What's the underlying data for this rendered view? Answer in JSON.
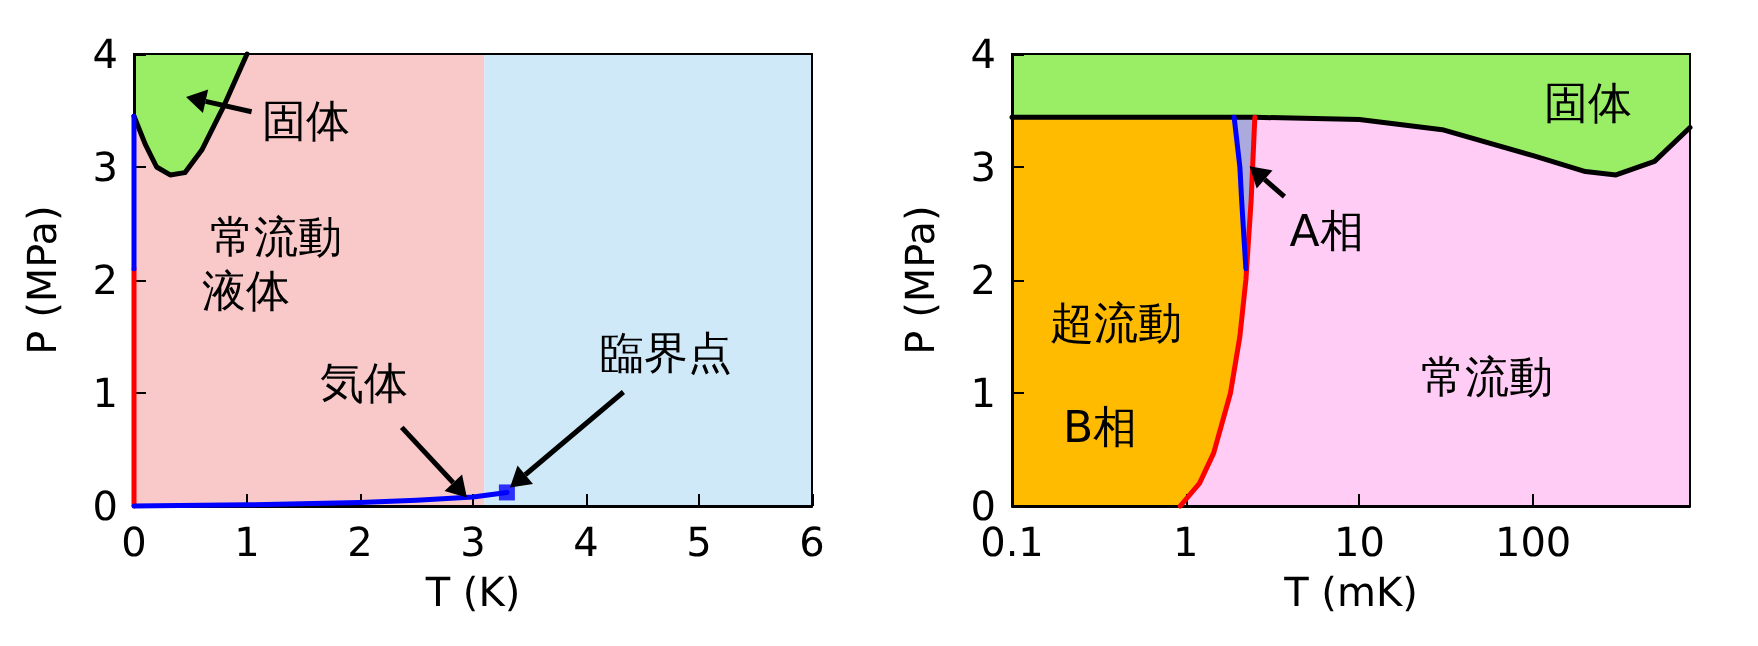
{
  "chart_data": [
    {
      "type": "line",
      "xlabel": "T (K)",
      "ylabel": "P (MPa)",
      "xlim": [
        0,
        6
      ],
      "ylim": [
        0,
        4
      ],
      "xticks": [
        0,
        1,
        2,
        3,
        4,
        5,
        6
      ],
      "yticks": [
        0,
        1,
        2,
        3,
        4
      ],
      "grid": false,
      "marker": "none",
      "bands": [
        {
          "axis": "x",
          "from": 0,
          "to": 3.1,
          "color": "#f9c9c9"
        },
        {
          "axis": "x",
          "from": 3.1,
          "to": 6,
          "color": "#cfe9f8"
        }
      ],
      "series": [
        {
          "color": "#000000",
          "x": [
            0,
            0.1,
            0.2,
            0.32,
            0.45,
            0.6,
            0.8,
            1.0
          ],
          "values": [
            3.45,
            3.2,
            3.0,
            2.93,
            2.95,
            3.15,
            3.55,
            4.0
          ]
        },
        {
          "color": "#ff0000",
          "x": [
            0,
            0
          ],
          "values": [
            0,
            2.1
          ]
        },
        {
          "color": "#0000ff",
          "x": [
            0,
            0
          ],
          "values": [
            2.1,
            3.45
          ]
        },
        {
          "color": "#0000ff",
          "x": [
            0,
            1,
            2,
            2.5,
            3,
            3.3
          ],
          "values": [
            0,
            0.01,
            0.03,
            0.05,
            0.08,
            0.12
          ]
        },
        {
          "type": "scatter",
          "marker": "square",
          "color": "#0000ff",
          "x": [
            3.3
          ],
          "values": [
            0.12
          ]
        }
      ],
      "annotations": [
        "固体",
        "常流動",
        "液体",
        {
          "text": "気体",
          "x": 2.97,
          "y": 0.05
        },
        "臨界点"
      ]
    },
    {
      "type": "line",
      "xlabel": "T (mK)",
      "ylabel": "P (MPa)",
      "log": "x",
      "xlim": [
        0.1,
        800
      ],
      "ylim": [
        0,
        4
      ],
      "xticks": [
        0.1,
        1,
        10,
        100
      ],
      "yticks": [
        0,
        1,
        2,
        3,
        4
      ],
      "grid": false,
      "marker": "none",
      "bands": [
        {
          "axis": "x",
          "from": 0.1,
          "to": 800,
          "color": "#ffccf5"
        }
      ],
      "series": [
        {
          "color": "#000000",
          "x": [
            0.1,
            1,
            2.5,
            10,
            30,
            100,
            200,
            300,
            500,
            800
          ],
          "values": [
            3.44,
            3.44,
            3.44,
            3.42,
            3.33,
            3.1,
            2.96,
            2.93,
            3.05,
            3.35
          ]
        },
        {
          "color": "#ff0000",
          "x": [
            0.93,
            1.2,
            1.45,
            1.81,
            2.05,
            2.22,
            2.38,
            2.5
          ],
          "values": [
            0,
            0.2,
            0.47,
            1.0,
            1.5,
            2.0,
            2.7,
            3.44
          ]
        },
        {
          "color": "#0000ff",
          "x": [
            2.22,
            2.1,
            2.05,
            1.9
          ],
          "values": [
            2.1,
            2.7,
            3.0,
            3.44
          ]
        }
      ],
      "annotations": [
        "固体",
        {
          "text": "A相",
          "x": 2.24,
          "y": 3.03
        },
        "超流動",
        "B相",
        "常流動"
      ]
    }
  ]
}
